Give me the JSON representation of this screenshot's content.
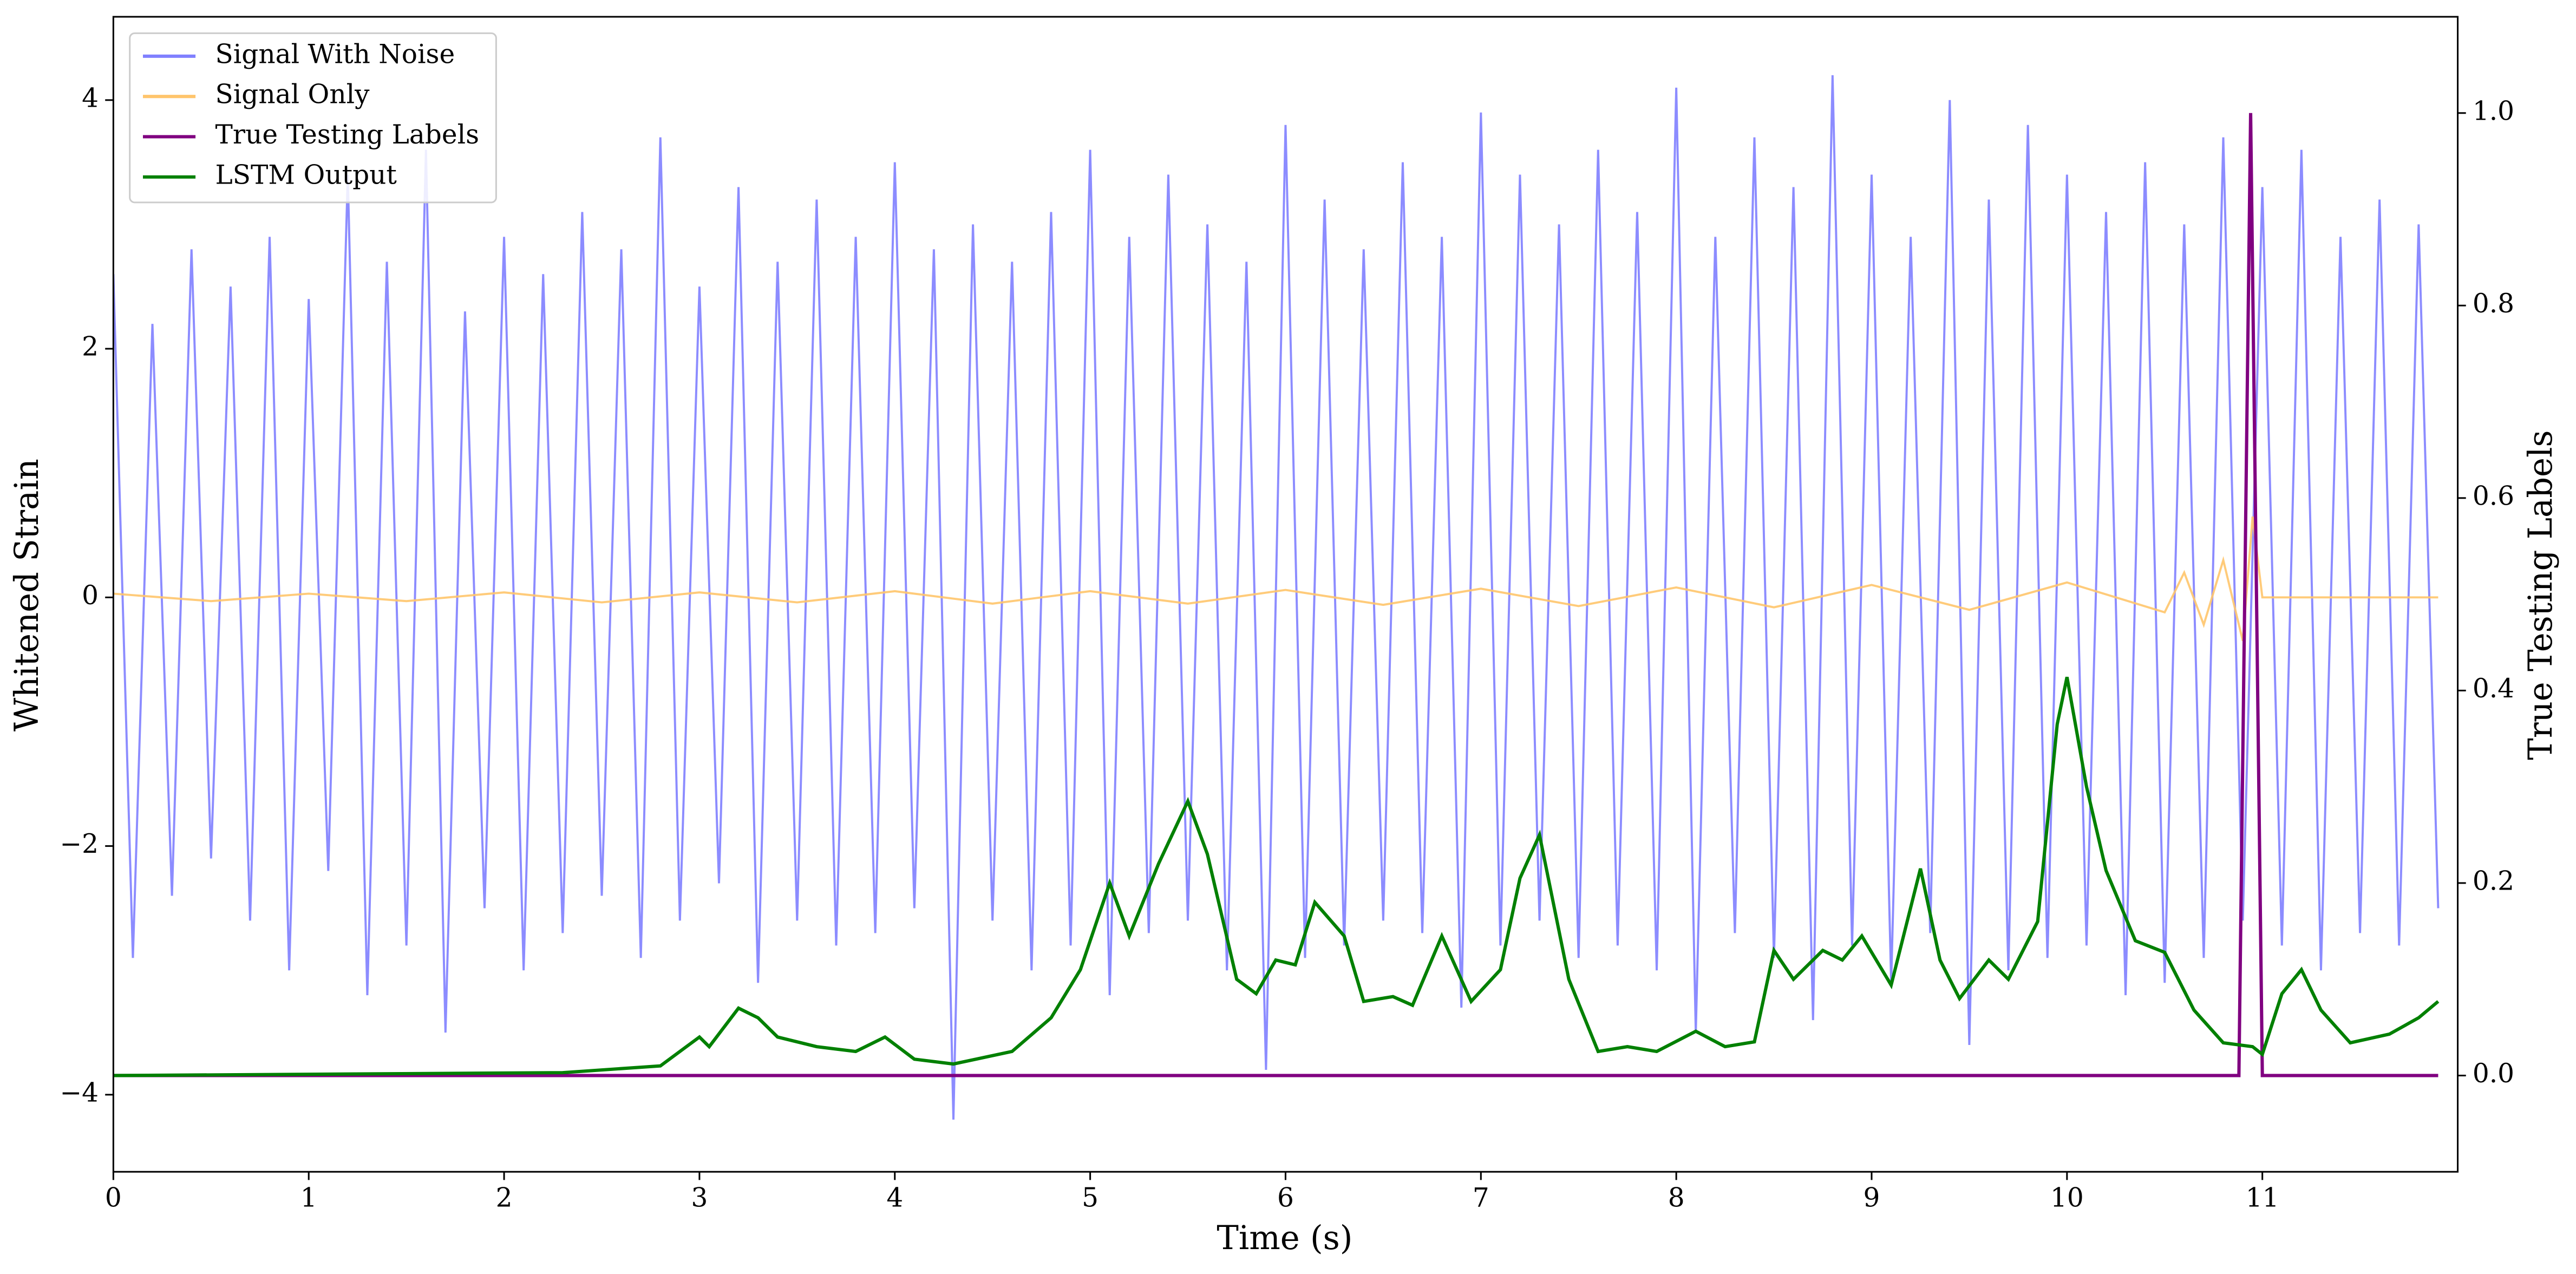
{
  "chart_data": {
    "type": "line",
    "xlabel": "Time (s)",
    "ylabel": "Whitened Strain",
    "y2label": "True Testing Labels",
    "xlim": [
      0,
      12
    ],
    "xticks": [
      0,
      1,
      2,
      3,
      4,
      5,
      6,
      7,
      8,
      9,
      10,
      11
    ],
    "ylim": [
      -4.62,
      4.67
    ],
    "yticks": [
      {
        "value": -4,
        "label": "−4"
      },
      {
        "value": -2,
        "label": "−2"
      },
      0,
      2,
      4
    ],
    "y2lim": [
      -0.1,
      1.1
    ],
    "y2ticks": [
      {
        "value": 0,
        "label": "0.0"
      },
      0.2,
      0.4,
      0.6,
      0.8,
      {
        "value": 1,
        "label": "1.0"
      }
    ],
    "legend": "upper left",
    "series": [
      {
        "name": "Signal With Noise",
        "color": "#8080ff",
        "x": [
          0.0,
          0.1,
          0.2,
          0.3,
          0.4,
          0.5,
          0.6,
          0.7,
          0.8,
          0.9,
          1.0,
          1.1,
          1.2,
          1.3,
          1.4,
          1.5,
          1.6,
          1.7,
          1.8,
          1.9,
          2.0,
          2.1,
          2.2,
          2.3,
          2.4,
          2.5,
          2.6,
          2.7,
          2.8,
          2.9,
          3.0,
          3.1,
          3.2,
          3.3,
          3.4,
          3.5,
          3.6,
          3.7,
          3.8,
          3.9,
          4.0,
          4.1,
          4.2,
          4.3,
          4.4,
          4.5,
          4.6,
          4.7,
          4.8,
          4.9,
          5.0,
          5.1,
          5.2,
          5.3,
          5.4,
          5.5,
          5.6,
          5.7,
          5.8,
          5.9,
          6.0,
          6.1,
          6.2,
          6.3,
          6.4,
          6.5,
          6.6,
          6.7,
          6.8,
          6.9,
          7.0,
          7.1,
          7.2,
          7.3,
          7.4,
          7.5,
          7.6,
          7.7,
          7.8,
          7.9,
          8.0,
          8.1,
          8.2,
          8.3,
          8.4,
          8.5,
          8.6,
          8.7,
          8.8,
          8.9,
          9.0,
          9.1,
          9.2,
          9.3,
          9.4,
          9.5,
          9.6,
          9.7,
          9.8,
          9.9,
          10.0,
          10.1,
          10.2,
          10.3,
          10.4,
          10.5,
          10.6,
          10.7,
          10.8,
          10.9,
          11.0,
          11.1,
          11.2,
          11.3,
          11.4,
          11.5,
          11.6,
          11.7,
          11.8,
          11.9
        ],
        "values": [
          2.6,
          -2.9,
          2.2,
          -2.4,
          2.8,
          -2.1,
          2.5,
          -2.6,
          2.9,
          -3.0,
          2.4,
          -2.2,
          3.4,
          -3.2,
          2.7,
          -2.8,
          3.6,
          -3.5,
          2.3,
          -2.5,
          2.9,
          -3.0,
          2.6,
          -2.7,
          3.1,
          -2.4,
          2.8,
          -2.9,
          3.7,
          -2.6,
          2.5,
          -2.3,
          3.3,
          -3.1,
          2.7,
          -2.6,
          3.2,
          -2.8,
          2.9,
          -2.7,
          3.5,
          -2.5,
          2.8,
          -4.2,
          3.0,
          -2.6,
          2.7,
          -3.0,
          3.1,
          -2.8,
          3.6,
          -3.2,
          2.9,
          -2.7,
          3.4,
          -2.6,
          3.0,
          -3.0,
          2.7,
          -3.8,
          3.8,
          -2.9,
          3.2,
          -2.8,
          2.8,
          -2.6,
          3.5,
          -2.7,
          2.9,
          -3.3,
          3.9,
          -2.8,
          3.4,
          -2.6,
          3.0,
          -2.9,
          3.6,
          -2.8,
          3.1,
          -3.0,
          4.1,
          -3.5,
          2.9,
          -2.7,
          3.7,
          -2.9,
          3.3,
          -3.4,
          4.2,
          -2.8,
          3.4,
          -3.1,
          2.9,
          -2.7,
          4.0,
          -3.6,
          3.2,
          -3.0,
          3.8,
          -2.9,
          3.4,
          -2.8,
          3.1,
          -3.2,
          3.5,
          -3.1,
          3.0,
          -2.9,
          3.7,
          -2.6,
          3.3,
          -2.8,
          3.6,
          -3.0,
          2.9,
          -2.7,
          3.2,
          -2.8,
          3.0,
          -2.5
        ]
      },
      {
        "name": "Signal Only",
        "color": "#ffc56c",
        "x": [
          0,
          0.5,
          1,
          1.5,
          2,
          2.5,
          3,
          3.5,
          4,
          4.5,
          5,
          5.5,
          6,
          6.5,
          7,
          7.5,
          8,
          8.5,
          9,
          9.5,
          10,
          10.5,
          10.6,
          10.7,
          10.8,
          10.9,
          10.95,
          11.0,
          11.9
        ],
        "values": [
          0.03,
          -0.03,
          0.03,
          -0.03,
          0.04,
          -0.04,
          0.04,
          -0.04,
          0.05,
          -0.05,
          0.05,
          -0.05,
          0.06,
          -0.06,
          0.07,
          -0.07,
          0.08,
          -0.08,
          0.1,
          -0.1,
          0.12,
          -0.12,
          0.2,
          -0.22,
          0.3,
          -0.35,
          0.65,
          0,
          0
        ]
      },
      {
        "name": "True Testing Labels",
        "color": "#800080",
        "axis": "y2",
        "x": [
          0,
          10.88,
          10.94,
          11.0,
          11.9
        ],
        "values": [
          0,
          0,
          1,
          0,
          0
        ]
      },
      {
        "name": "LSTM Output",
        "color": "#008000",
        "axis": "y2",
        "x": [
          0,
          2.3,
          2.8,
          3.0,
          3.05,
          3.2,
          3.3,
          3.4,
          3.6,
          3.8,
          3.95,
          4.1,
          4.3,
          4.6,
          4.8,
          4.95,
          5.1,
          5.2,
          5.35,
          5.5,
          5.6,
          5.75,
          5.85,
          5.95,
          6.05,
          6.15,
          6.3,
          6.4,
          6.55,
          6.65,
          6.8,
          6.95,
          7.1,
          7.2,
          7.3,
          7.45,
          7.6,
          7.75,
          7.9,
          8.1,
          8.25,
          8.4,
          8.5,
          8.6,
          8.75,
          8.85,
          8.95,
          9.1,
          9.25,
          9.35,
          9.45,
          9.6,
          9.7,
          9.85,
          9.95,
          10.0,
          10.1,
          10.2,
          10.35,
          10.5,
          10.65,
          10.8,
          10.95,
          11.0,
          11.1,
          11.2,
          11.3,
          11.45,
          11.65,
          11.8,
          11.9
        ],
        "values": [
          0,
          0.003,
          0.01,
          0.04,
          0.03,
          0.07,
          0.06,
          0.04,
          0.03,
          0.025,
          0.04,
          0.017,
          0.012,
          0.025,
          0.06,
          0.11,
          0.2,
          0.145,
          0.22,
          0.285,
          0.23,
          0.1,
          0.085,
          0.12,
          0.115,
          0.18,
          0.145,
          0.077,
          0.082,
          0.073,
          0.145,
          0.077,
          0.11,
          0.205,
          0.25,
          0.1,
          0.025,
          0.03,
          0.025,
          0.046,
          0.03,
          0.035,
          0.13,
          0.1,
          0.13,
          0.12,
          0.145,
          0.094,
          0.215,
          0.12,
          0.08,
          0.12,
          0.1,
          0.16,
          0.365,
          0.414,
          0.3,
          0.213,
          0.14,
          0.128,
          0.068,
          0.034,
          0.03,
          0.022,
          0.085,
          0.11,
          0.068,
          0.034,
          0.043,
          0.06,
          0.077
        ]
      }
    ]
  }
}
